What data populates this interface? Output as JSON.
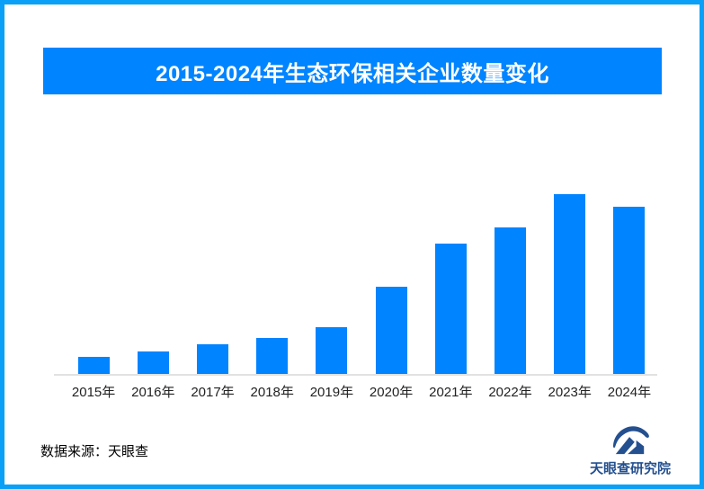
{
  "colors": {
    "accent": "#0084FF",
    "frame_border": "#0AA0F8",
    "axis_line": "#E2E2E2",
    "title_text": "#FFFFFF",
    "label_text": "#222222",
    "logo_navy": "#24508F"
  },
  "header": {
    "title": "2015-2024年生态环保相关企业数量变化"
  },
  "chart_data": {
    "type": "bar",
    "title": "2015-2024年生态环保相关企业数量变化",
    "categories": [
      "2015年",
      "2016年",
      "2017年",
      "2018年",
      "2019年",
      "2020年",
      "2021年",
      "2022年",
      "2023年",
      "2024年"
    ],
    "values": [
      20,
      26,
      34,
      41,
      53,
      98,
      146,
      164,
      201,
      187
    ],
    "xlabel": "",
    "ylabel": "",
    "ylim": [
      0,
      220
    ],
    "grid": false,
    "legend": false,
    "value_labels_shown": false,
    "note": "no y-axis or data labels are shown in the image; values are relative heights estimated from the bars"
  },
  "footer": {
    "source_label": "数据来源：天眼查"
  },
  "logo": {
    "brand_name": "天眼查研究院",
    "icon": "tianyancha-eye-logo"
  }
}
